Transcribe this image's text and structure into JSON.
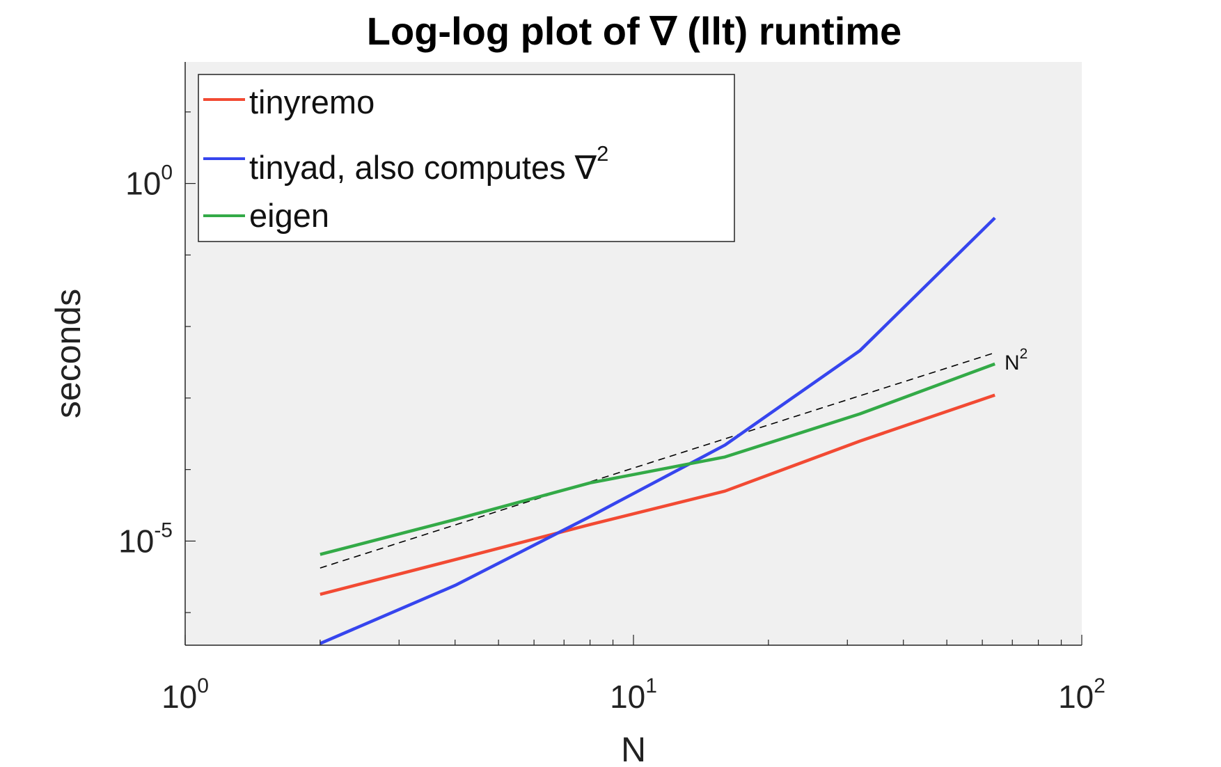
{
  "chart_data": {
    "type": "line",
    "title": "Log-log plot of ∇ (llt) runtime",
    "xlabel": "N",
    "ylabel": "seconds",
    "xscale": "log",
    "yscale": "log",
    "xlim": [
      1,
      100
    ],
    "ylim": [
      3.5e-07,
      50
    ],
    "x_ticks": [
      {
        "base": "10",
        "exp": "0"
      },
      {
        "base": "10",
        "exp": "1"
      },
      {
        "base": "10",
        "exp": "2"
      }
    ],
    "y_ticks": [
      {
        "base": "10",
        "exp": "-5"
      },
      {
        "base": "10",
        "exp": "0"
      }
    ],
    "x_tick_values": [
      1,
      10,
      100
    ],
    "y_tick_values": [
      1e-05,
      1
    ],
    "x": [
      2,
      4,
      8,
      16,
      32,
      64
    ],
    "series": [
      {
        "name": "tinyremo",
        "color": "#f24a33",
        "values": [
          1.8e-06,
          5.5e-06,
          1.7e-05,
          5e-05,
          0.00025,
          0.0011
        ]
      },
      {
        "name": "tinyad, also computes ∇²",
        "name_main": "tinyad, also computes ∇",
        "name_sup": "2",
        "color": "#3645ee",
        "values": [
          3.7e-07,
          2.4e-06,
          2.2e-05,
          0.00022,
          0.0046,
          0.33
        ]
      },
      {
        "name": "eigen",
        "color": "#33aa47",
        "values": [
          6.5e-06,
          2e-05,
          6.5e-05,
          0.00015,
          0.0006,
          0.003
        ]
      }
    ],
    "reference_line": {
      "label": "N",
      "label_sup": "2",
      "style": "dashed",
      "color": "#000000",
      "x": [
        2,
        64
      ],
      "values": [
        4.2e-06,
        0.0043
      ]
    },
    "legend": {
      "position": "top-left",
      "box": true
    },
    "grid": false,
    "plot_background": "#f0f0f0"
  }
}
